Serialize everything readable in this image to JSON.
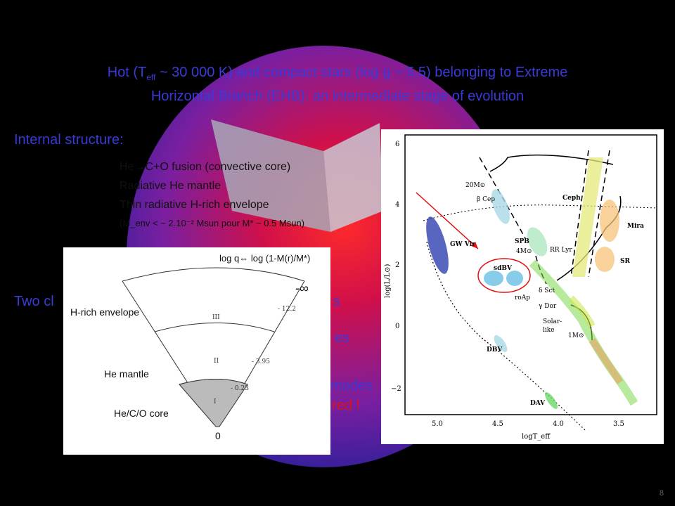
{
  "title": {
    "line1_pre": "Hot (T",
    "line1_sub": "eff",
    "line1_post": " ~ 30 000 K) and compact stars (log g ~ 5.5) belonging to Extreme",
    "line2": "Horizontal Branch (EHB): an intermediate stage of evolution"
  },
  "internal_structure": {
    "heading": "Internal structure:",
    "lines": [
      "He→C+O fusion (convective core)",
      "Radiative He mantle",
      "Thin radiative H-rich envelope",
      "(M_env < ~ 2.10⁻² Msun pour M* ~ 0.5 Msun)"
    ]
  },
  "background_text": {
    "two_classes": "Two cl",
    "two_classes_end": "s",
    "es": "es",
    "modes": "modes",
    "red": "red !"
  },
  "inset": {
    "axis_label": "log q",
    "axis_label_symbol": "⇔",
    "axis_label_rest": "log (1-M(r)/M*)",
    "infinity": "-∞",
    "zero": "0",
    "ticks": [
      "- 12.2",
      "- 3.95",
      "- 0.23"
    ],
    "zones": [
      "III",
      "II",
      "I"
    ],
    "layers": [
      "H-rich envelope",
      "He mantle",
      "He/C/O core"
    ]
  },
  "hr_diagram": {
    "ylabel": "log(L/L⊙)",
    "xlabel": "logT_eff",
    "y_ticks": [
      "6",
      "4",
      "2",
      "0",
      "−2"
    ],
    "x_ticks": [
      "5.0",
      "4.5",
      "4.0",
      "3.5"
    ],
    "regions": [
      "20M⊙",
      "β Cep",
      "Ceph",
      "GW Vir",
      "SPB",
      "4M⊙",
      "RR Lyr",
      "Mira",
      "sdBV",
      "δ Sct",
      "roAp",
      "γ Dor",
      "SR",
      "Solar-",
      "like",
      "1M⊙",
      "DBV",
      "DAV"
    ]
  },
  "page_number": "8"
}
